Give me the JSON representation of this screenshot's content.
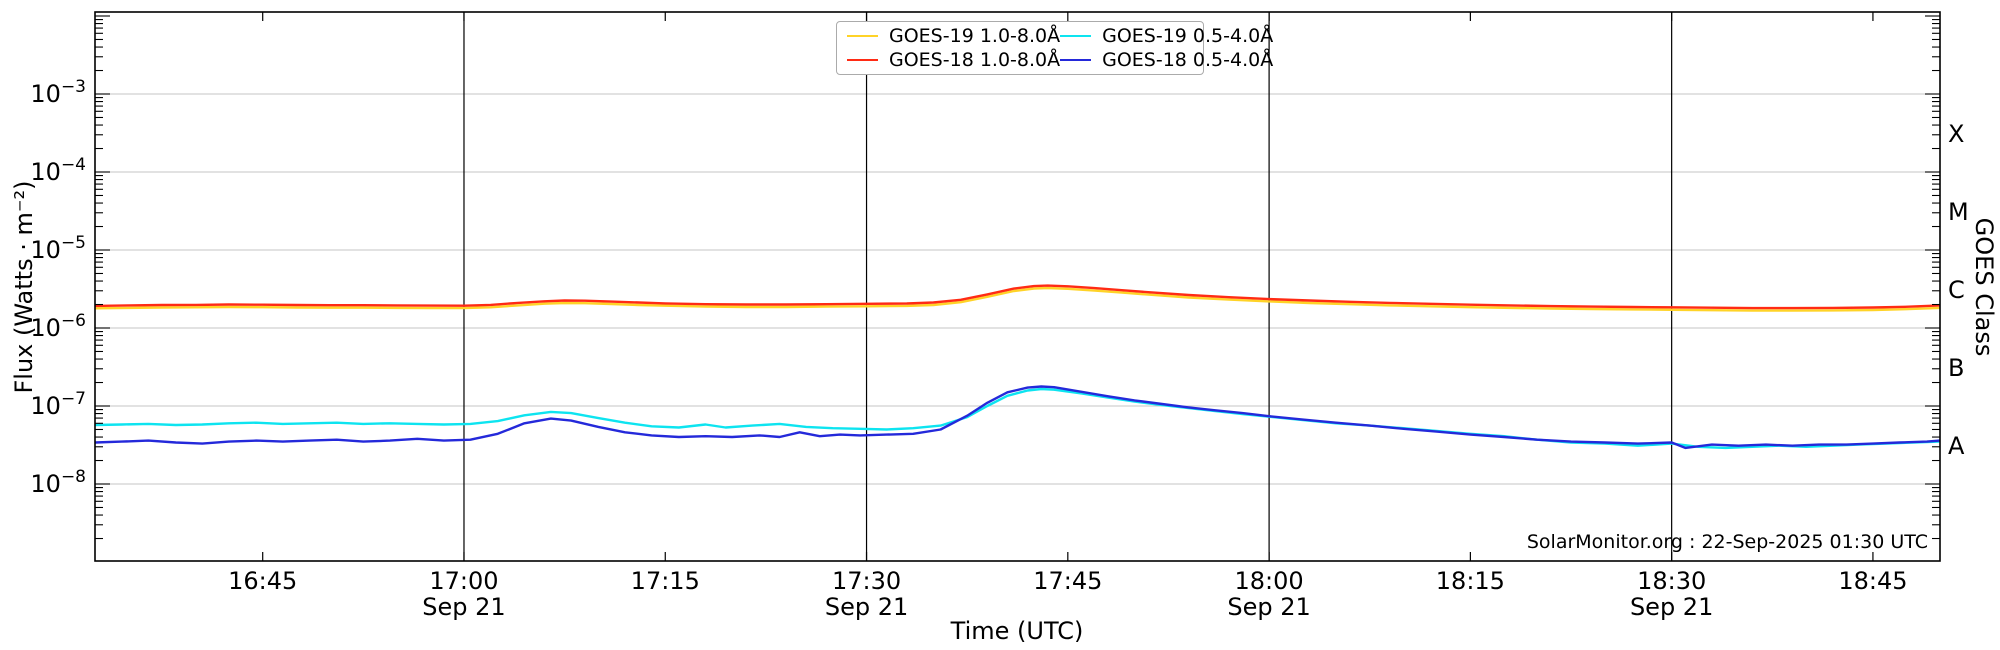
{
  "page": {
    "background": "#ffffff"
  },
  "chart_data": {
    "type": "line",
    "title": "",
    "xlabel": "Time (UTC)",
    "ylabel": "Flux (Watts · m⁻²)",
    "right_axis_label": "GOES Class",
    "watermark": "SolarMonitor.org : 22-Sep-2025 01:30 UTC",
    "x_axis_date": "Sep 21",
    "x_domain_hours": [
      16.5417,
      18.8333
    ],
    "y_domain": [
      1e-09,
      0.012
    ],
    "grid": true,
    "grid_color": "#c6c6c6",
    "frame_color": "#000000",
    "y_tick_exponents": [
      -3,
      -4,
      -5,
      -6,
      -7,
      -8
    ],
    "x_ticks": [
      {
        "h": 16.75,
        "label": "16:45",
        "sub": "",
        "vline": false
      },
      {
        "h": 17.0,
        "label": "17:00",
        "sub": "Sep 21",
        "vline": true
      },
      {
        "h": 17.25,
        "label": "17:15",
        "sub": "",
        "vline": false
      },
      {
        "h": 17.5,
        "label": "17:30",
        "sub": "Sep 21",
        "vline": true
      },
      {
        "h": 17.75,
        "label": "17:45",
        "sub": "",
        "vline": false
      },
      {
        "h": 18.0,
        "label": "18:00",
        "sub": "Sep 21",
        "vline": true
      },
      {
        "h": 18.25,
        "label": "18:15",
        "sub": "",
        "vline": false
      },
      {
        "h": 18.5,
        "label": "18:30",
        "sub": "Sep 21",
        "vline": true
      },
      {
        "h": 18.75,
        "label": "18:45",
        "sub": "",
        "vline": false
      }
    ],
    "goes_classes": [
      {
        "label": "X",
        "log_center": -3.5
      },
      {
        "label": "M",
        "log_center": -4.5
      },
      {
        "label": "C",
        "log_center": -5.5
      },
      {
        "label": "B",
        "log_center": -6.5
      },
      {
        "label": "A",
        "log_center": -7.5
      }
    ],
    "legend_position": "upper center",
    "series": [
      {
        "name": "GOES-19 1.0-8.0Å",
        "color": "#ffd327",
        "points": [
          [
            16.542,
            1.79e-06
          ],
          [
            16.583,
            1.81e-06
          ],
          [
            16.625,
            1.83e-06
          ],
          [
            16.667,
            1.84e-06
          ],
          [
            16.708,
            1.86e-06
          ],
          [
            16.75,
            1.85e-06
          ],
          [
            16.792,
            1.83e-06
          ],
          [
            16.833,
            1.82e-06
          ],
          [
            16.875,
            1.82e-06
          ],
          [
            16.917,
            1.81e-06
          ],
          [
            16.958,
            1.8e-06
          ],
          [
            17.0,
            1.8e-06
          ],
          [
            17.033,
            1.84e-06
          ],
          [
            17.067,
            1.95e-06
          ],
          [
            17.1,
            2.05e-06
          ],
          [
            17.125,
            2.09e-06
          ],
          [
            17.15,
            2.08e-06
          ],
          [
            17.183,
            2.03e-06
          ],
          [
            17.217,
            1.97e-06
          ],
          [
            17.25,
            1.93e-06
          ],
          [
            17.3,
            1.88e-06
          ],
          [
            17.35,
            1.86e-06
          ],
          [
            17.4,
            1.86e-06
          ],
          [
            17.45,
            1.88e-06
          ],
          [
            17.5,
            1.9e-06
          ],
          [
            17.55,
            1.92e-06
          ],
          [
            17.583,
            1.97e-06
          ],
          [
            17.617,
            2.14e-06
          ],
          [
            17.65,
            2.51e-06
          ],
          [
            17.683,
            2.98e-06
          ],
          [
            17.708,
            3.21e-06
          ],
          [
            17.725,
            3.26e-06
          ],
          [
            17.75,
            3.18e-06
          ],
          [
            17.783,
            3.02e-06
          ],
          [
            17.817,
            2.84e-06
          ],
          [
            17.85,
            2.68e-06
          ],
          [
            17.9,
            2.46e-06
          ],
          [
            17.95,
            2.31e-06
          ],
          [
            18.0,
            2.19e-06
          ],
          [
            18.05,
            2.09e-06
          ],
          [
            18.1,
            2.02e-06
          ],
          [
            18.15,
            1.95e-06
          ],
          [
            18.2,
            1.9e-06
          ],
          [
            18.25,
            1.85e-06
          ],
          [
            18.3,
            1.81e-06
          ],
          [
            18.35,
            1.78e-06
          ],
          [
            18.4,
            1.75e-06
          ],
          [
            18.45,
            1.73e-06
          ],
          [
            18.5,
            1.71e-06
          ],
          [
            18.55,
            1.69e-06
          ],
          [
            18.6,
            1.67e-06
          ],
          [
            18.65,
            1.67e-06
          ],
          [
            18.7,
            1.68e-06
          ],
          [
            18.75,
            1.7e-06
          ],
          [
            18.79,
            1.74e-06
          ],
          [
            18.833,
            1.81e-06
          ]
        ]
      },
      {
        "name": "GOES-18 1.0-8.0Å",
        "color": "#ff2b14",
        "points": [
          [
            16.542,
            1.92e-06
          ],
          [
            16.583,
            1.95e-06
          ],
          [
            16.625,
            1.97e-06
          ],
          [
            16.667,
            1.98e-06
          ],
          [
            16.708,
            2e-06
          ],
          [
            16.75,
            1.99e-06
          ],
          [
            16.792,
            1.97e-06
          ],
          [
            16.833,
            1.96e-06
          ],
          [
            16.875,
            1.96e-06
          ],
          [
            16.917,
            1.95e-06
          ],
          [
            16.958,
            1.94e-06
          ],
          [
            17.0,
            1.93e-06
          ],
          [
            17.033,
            1.98e-06
          ],
          [
            17.067,
            2.1e-06
          ],
          [
            17.1,
            2.2e-06
          ],
          [
            17.125,
            2.25e-06
          ],
          [
            17.15,
            2.24e-06
          ],
          [
            17.183,
            2.18e-06
          ],
          [
            17.217,
            2.12e-06
          ],
          [
            17.25,
            2.07e-06
          ],
          [
            17.3,
            2.02e-06
          ],
          [
            17.35,
            2e-06
          ],
          [
            17.4,
            2e-06
          ],
          [
            17.45,
            2.02e-06
          ],
          [
            17.5,
            2.04e-06
          ],
          [
            17.55,
            2.06e-06
          ],
          [
            17.583,
            2.12e-06
          ],
          [
            17.617,
            2.3e-06
          ],
          [
            17.65,
            2.7e-06
          ],
          [
            17.683,
            3.2e-06
          ],
          [
            17.708,
            3.45e-06
          ],
          [
            17.725,
            3.5e-06
          ],
          [
            17.75,
            3.42e-06
          ],
          [
            17.783,
            3.25e-06
          ],
          [
            17.817,
            3.05e-06
          ],
          [
            17.85,
            2.88e-06
          ],
          [
            17.9,
            2.65e-06
          ],
          [
            17.95,
            2.48e-06
          ],
          [
            18.0,
            2.35e-06
          ],
          [
            18.05,
            2.25e-06
          ],
          [
            18.1,
            2.17e-06
          ],
          [
            18.15,
            2.1e-06
          ],
          [
            18.2,
            2.04e-06
          ],
          [
            18.25,
            1.99e-06
          ],
          [
            18.3,
            1.95e-06
          ],
          [
            18.35,
            1.91e-06
          ],
          [
            18.4,
            1.88e-06
          ],
          [
            18.45,
            1.86e-06
          ],
          [
            18.5,
            1.84e-06
          ],
          [
            18.55,
            1.82e-06
          ],
          [
            18.6,
            1.8e-06
          ],
          [
            18.65,
            1.8e-06
          ],
          [
            18.7,
            1.81e-06
          ],
          [
            18.75,
            1.83e-06
          ],
          [
            18.79,
            1.87e-06
          ],
          [
            18.833,
            1.95e-06
          ]
        ]
      },
      {
        "name": "GOES-19 0.5-4.0Å",
        "color": "#0de4f0",
        "points": [
          [
            16.542,
            5.7e-08
          ],
          [
            16.575,
            5.8e-08
          ],
          [
            16.608,
            5.9e-08
          ],
          [
            16.642,
            5.7e-08
          ],
          [
            16.675,
            5.8e-08
          ],
          [
            16.708,
            6e-08
          ],
          [
            16.742,
            6.1e-08
          ],
          [
            16.775,
            5.9e-08
          ],
          [
            16.808,
            6e-08
          ],
          [
            16.842,
            6.1e-08
          ],
          [
            16.875,
            5.9e-08
          ],
          [
            16.908,
            6e-08
          ],
          [
            16.942,
            5.9e-08
          ],
          [
            16.975,
            5.8e-08
          ],
          [
            17.008,
            5.9e-08
          ],
          [
            17.042,
            6.4e-08
          ],
          [
            17.075,
            7.6e-08
          ],
          [
            17.108,
            8.4e-08
          ],
          [
            17.133,
            8.1e-08
          ],
          [
            17.167,
            7e-08
          ],
          [
            17.2,
            6.1e-08
          ],
          [
            17.233,
            5.5e-08
          ],
          [
            17.267,
            5.3e-08
          ],
          [
            17.3,
            5.8e-08
          ],
          [
            17.325,
            5.3e-08
          ],
          [
            17.358,
            5.6e-08
          ],
          [
            17.392,
            5.9e-08
          ],
          [
            17.425,
            5.4e-08
          ],
          [
            17.458,
            5.2e-08
          ],
          [
            17.492,
            5.1e-08
          ],
          [
            17.525,
            5e-08
          ],
          [
            17.558,
            5.2e-08
          ],
          [
            17.592,
            5.6e-08
          ],
          [
            17.625,
            7.2e-08
          ],
          [
            17.65,
            1e-07
          ],
          [
            17.675,
            1.35e-07
          ],
          [
            17.7,
            1.58e-07
          ],
          [
            17.717,
            1.65e-07
          ],
          [
            17.733,
            1.62e-07
          ],
          [
            17.767,
            1.45e-07
          ],
          [
            17.8,
            1.28e-07
          ],
          [
            17.833,
            1.14e-07
          ],
          [
            17.867,
            1.03e-07
          ],
          [
            17.9,
            9.4e-08
          ],
          [
            17.933,
            8.6e-08
          ],
          [
            17.967,
            7.9e-08
          ],
          [
            18.0,
            7.3e-08
          ],
          [
            18.042,
            6.6e-08
          ],
          [
            18.083,
            6e-08
          ],
          [
            18.125,
            5.6e-08
          ],
          [
            18.167,
            5.2e-08
          ],
          [
            18.208,
            4.8e-08
          ],
          [
            18.25,
            4.4e-08
          ],
          [
            18.292,
            4.1e-08
          ],
          [
            18.333,
            3.7e-08
          ],
          [
            18.375,
            3.4e-08
          ],
          [
            18.417,
            3.3e-08
          ],
          [
            18.458,
            3.1e-08
          ],
          [
            18.5,
            3.3e-08
          ],
          [
            18.533,
            3e-08
          ],
          [
            18.567,
            2.9e-08
          ],
          [
            18.6,
            3e-08
          ],
          [
            18.633,
            3.1e-08
          ],
          [
            18.667,
            3e-08
          ],
          [
            18.7,
            3.1e-08
          ],
          [
            18.733,
            3.2e-08
          ],
          [
            18.767,
            3.3e-08
          ],
          [
            18.8,
            3.4e-08
          ],
          [
            18.833,
            3.5e-08
          ]
        ]
      },
      {
        "name": "GOES-18 0.5-4.0Å",
        "color": "#2429da",
        "points": [
          [
            16.542,
            3.4e-08
          ],
          [
            16.575,
            3.5e-08
          ],
          [
            16.608,
            3.6e-08
          ],
          [
            16.642,
            3.4e-08
          ],
          [
            16.675,
            3.3e-08
          ],
          [
            16.708,
            3.5e-08
          ],
          [
            16.742,
            3.6e-08
          ],
          [
            16.775,
            3.5e-08
          ],
          [
            16.808,
            3.6e-08
          ],
          [
            16.842,
            3.7e-08
          ],
          [
            16.875,
            3.5e-08
          ],
          [
            16.908,
            3.6e-08
          ],
          [
            16.942,
            3.8e-08
          ],
          [
            16.975,
            3.6e-08
          ],
          [
            17.008,
            3.7e-08
          ],
          [
            17.042,
            4.4e-08
          ],
          [
            17.075,
            6e-08
          ],
          [
            17.108,
            6.9e-08
          ],
          [
            17.133,
            6.5e-08
          ],
          [
            17.167,
            5.4e-08
          ],
          [
            17.2,
            4.6e-08
          ],
          [
            17.233,
            4.2e-08
          ],
          [
            17.267,
            4e-08
          ],
          [
            17.3,
            4.1e-08
          ],
          [
            17.333,
            4e-08
          ],
          [
            17.367,
            4.2e-08
          ],
          [
            17.392,
            4e-08
          ],
          [
            17.417,
            4.6e-08
          ],
          [
            17.442,
            4.1e-08
          ],
          [
            17.467,
            4.3e-08
          ],
          [
            17.492,
            4.2e-08
          ],
          [
            17.525,
            4.3e-08
          ],
          [
            17.558,
            4.4e-08
          ],
          [
            17.592,
            5e-08
          ],
          [
            17.625,
            7.5e-08
          ],
          [
            17.65,
            1.1e-07
          ],
          [
            17.675,
            1.5e-07
          ],
          [
            17.7,
            1.72e-07
          ],
          [
            17.717,
            1.78e-07
          ],
          [
            17.733,
            1.74e-07
          ],
          [
            17.767,
            1.52e-07
          ],
          [
            17.8,
            1.33e-07
          ],
          [
            17.833,
            1.18e-07
          ],
          [
            17.867,
            1.06e-07
          ],
          [
            17.9,
            9.6e-08
          ],
          [
            17.933,
            8.8e-08
          ],
          [
            17.967,
            8.1e-08
          ],
          [
            18.0,
            7.4e-08
          ],
          [
            18.042,
            6.7e-08
          ],
          [
            18.083,
            6.1e-08
          ],
          [
            18.125,
            5.6e-08
          ],
          [
            18.167,
            5.1e-08
          ],
          [
            18.208,
            4.7e-08
          ],
          [
            18.25,
            4.3e-08
          ],
          [
            18.292,
            4e-08
          ],
          [
            18.333,
            3.7e-08
          ],
          [
            18.375,
            3.5e-08
          ],
          [
            18.417,
            3.4e-08
          ],
          [
            18.458,
            3.3e-08
          ],
          [
            18.5,
            3.4e-08
          ],
          [
            18.517,
            2.9e-08
          ],
          [
            18.55,
            3.2e-08
          ],
          [
            18.583,
            3.1e-08
          ],
          [
            18.617,
            3.2e-08
          ],
          [
            18.65,
            3.1e-08
          ],
          [
            18.683,
            3.2e-08
          ],
          [
            18.717,
            3.2e-08
          ],
          [
            18.75,
            3.3e-08
          ],
          [
            18.783,
            3.4e-08
          ],
          [
            18.817,
            3.5e-08
          ],
          [
            18.833,
            3.6e-08
          ]
        ]
      }
    ]
  }
}
